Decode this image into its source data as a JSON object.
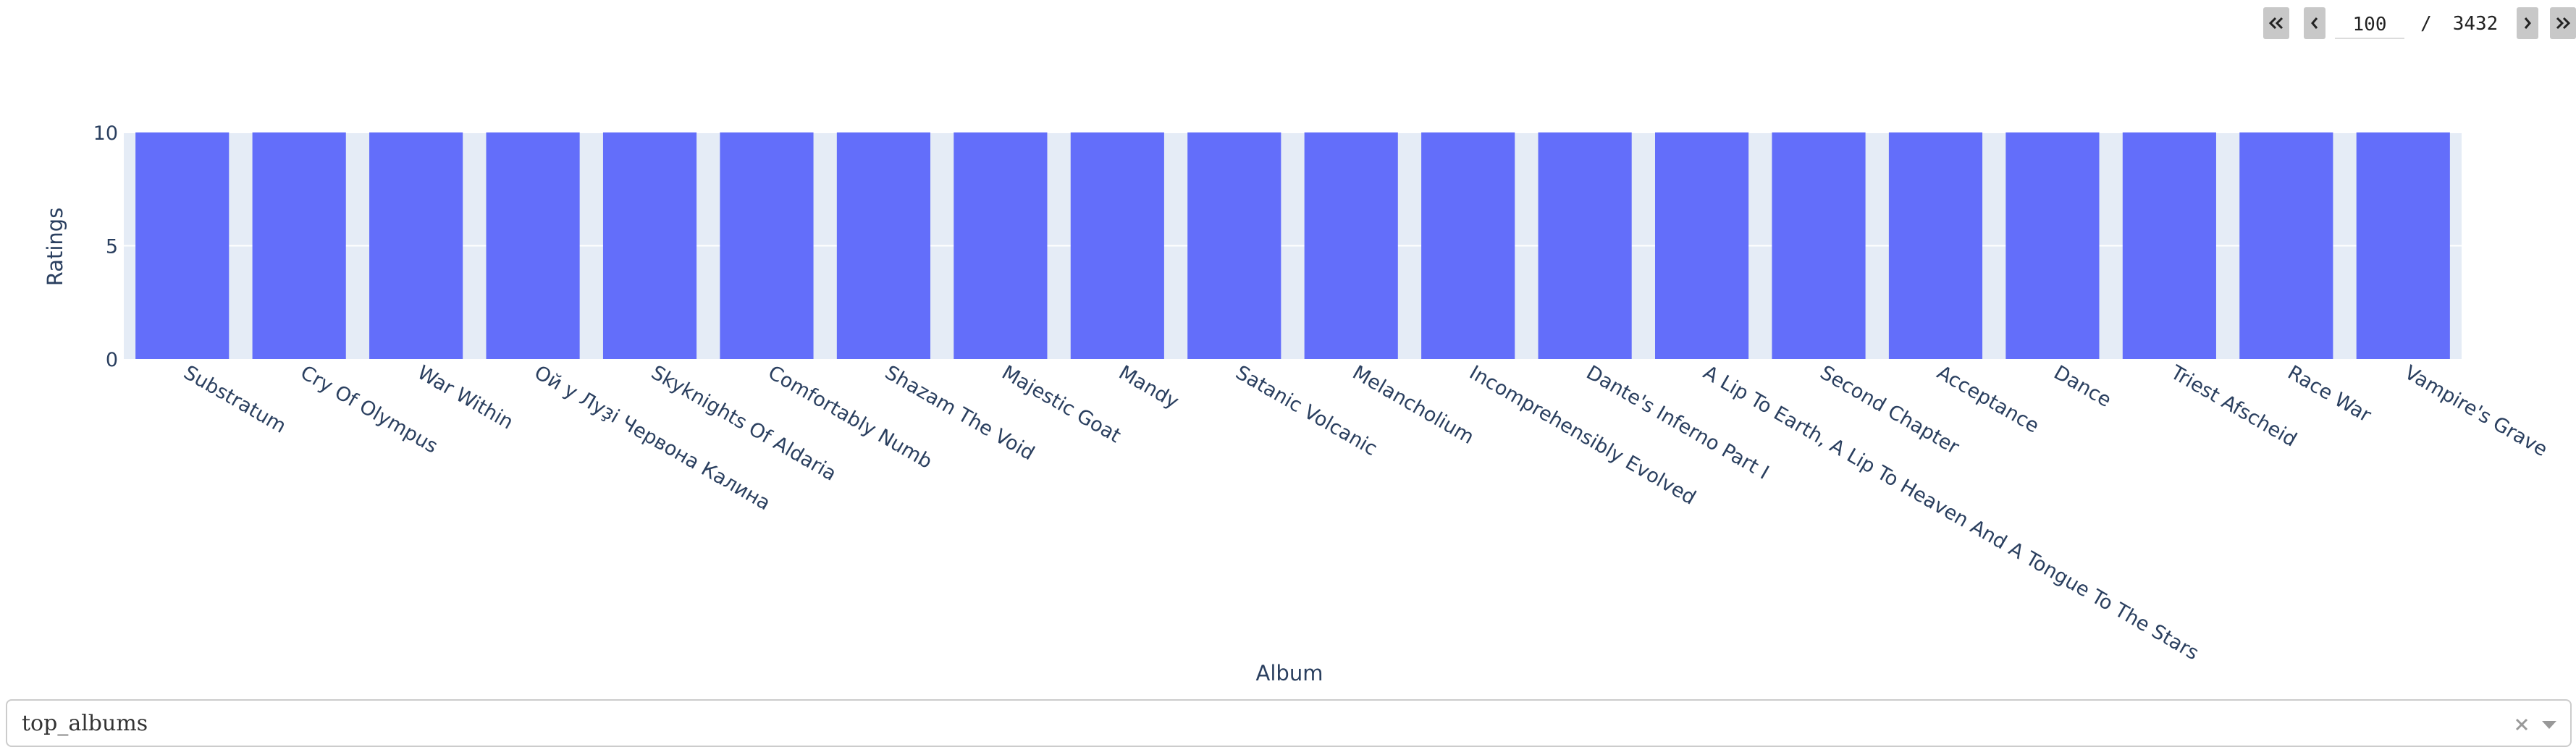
{
  "pager": {
    "current_page": "100",
    "separator": "/",
    "total_pages": "3432",
    "first_icon": "double-chevron-left-icon",
    "prev_icon": "chevron-left-icon",
    "next_icon": "chevron-right-icon",
    "last_icon": "double-chevron-right-icon"
  },
  "dropdown": {
    "selected": "top_albums",
    "clear_icon": "close-icon",
    "arrow_icon": "caret-down-icon"
  },
  "colors": {
    "bar": "#636efa",
    "plot_bg": "#e5ecf6",
    "text": "#2a3f5f",
    "pager_button": "#c8c8c8"
  },
  "chart_data": {
    "type": "bar",
    "xlabel": "Album",
    "ylabel": "Ratings",
    "ylim": [
      0,
      10
    ],
    "yticks": [
      0,
      5,
      10
    ],
    "grid": true,
    "categories": [
      "Substratum",
      "Cry Of Olympus",
      "War Within",
      "Ой у Луҙі Червона Калина",
      "Skyknights Of Aldaria",
      "Comfortably Numb",
      "Shazam The Void",
      "Majestic Goat",
      "Mandy",
      "Satanic Volcanic",
      "Melancholium",
      "Incomprehensibly Evolved",
      "Dante's Inferno Part I",
      "A Lip To Earth, A Lip To Heaven And A Tongue To The Stars",
      "Second Chapter",
      "Acceptance",
      "Dance",
      "Triest Afscheid",
      "Race War",
      "Vampire's Grave"
    ],
    "values": [
      10,
      10,
      10,
      10,
      10,
      10,
      10,
      10,
      10,
      10,
      10,
      10,
      10,
      10,
      10,
      10,
      10,
      10,
      10,
      10
    ]
  }
}
